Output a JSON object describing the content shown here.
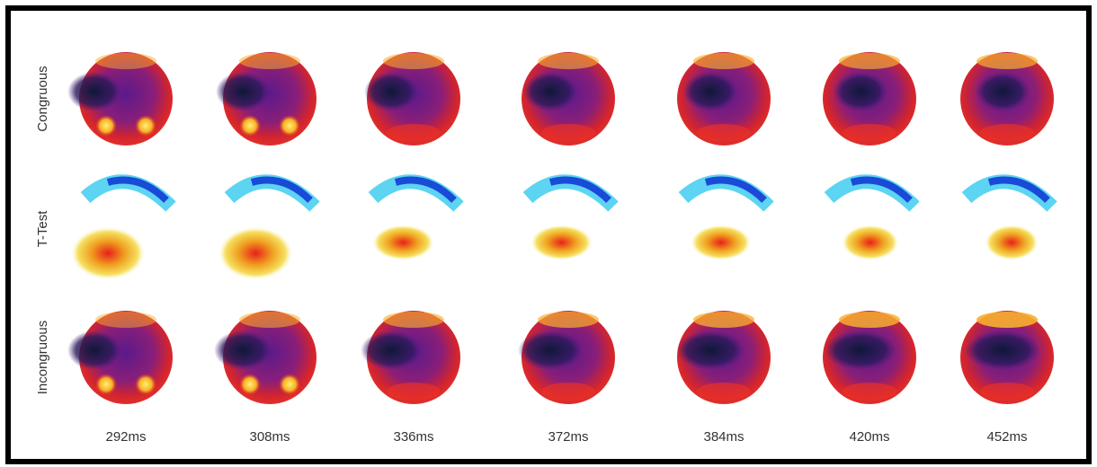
{
  "rows": [
    "Congruous",
    "T-Test",
    "Incongruous"
  ],
  "times": [
    "292ms",
    "308ms",
    "336ms",
    "372ms",
    "384ms",
    "420ms",
    "452ms"
  ]
}
